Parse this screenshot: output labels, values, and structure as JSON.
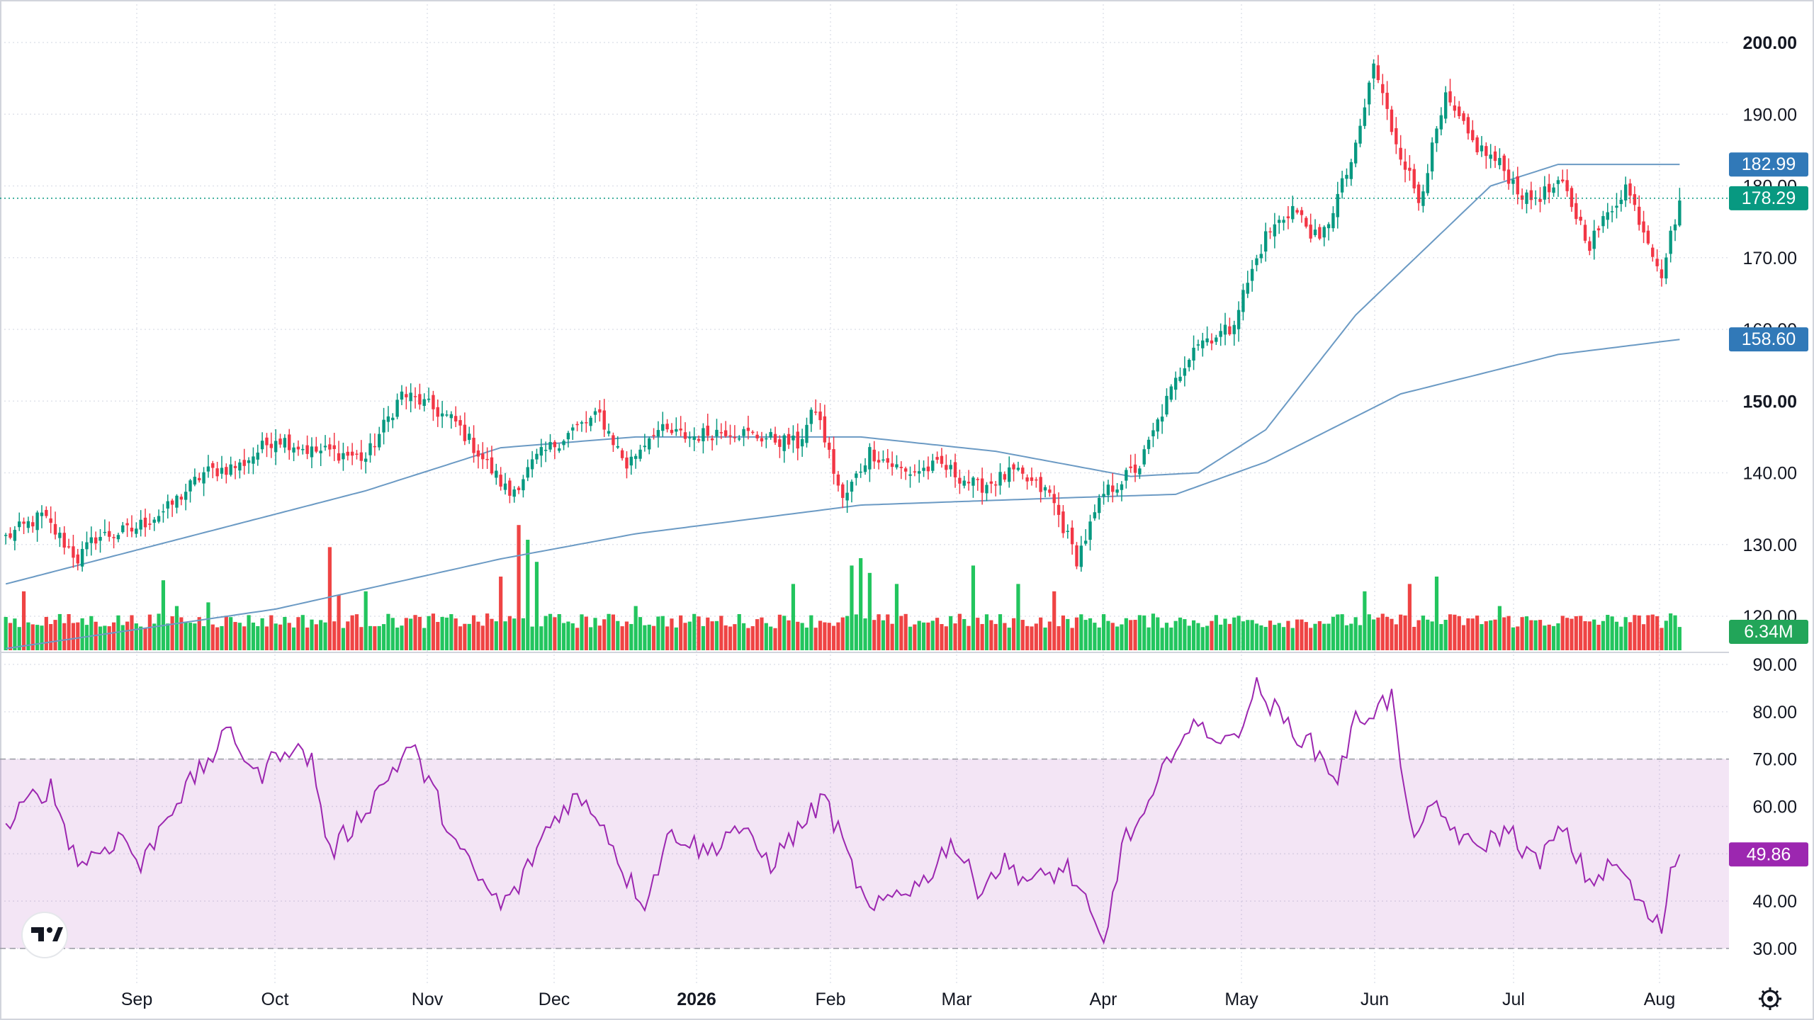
{
  "chart_data": [
    {
      "type": "candlestick",
      "panel": "price",
      "y_ticks": [
        "200.00",
        "190.00",
        "180.00",
        "170.00",
        "160.00",
        "150.00",
        "140.00",
        "130.00",
        "120.00"
      ],
      "bold_ticks": [
        "200.00",
        "150.00"
      ],
      "ylim": [
        114,
        207
      ],
      "x_labels": [
        {
          "label": "Sep",
          "bold": false
        },
        {
          "label": "Oct",
          "bold": false
        },
        {
          "label": "Nov",
          "bold": false
        },
        {
          "label": "Dec",
          "bold": false
        },
        {
          "label": "2026",
          "bold": true
        },
        {
          "label": "Feb",
          "bold": false
        },
        {
          "label": "Mar",
          "bold": false
        },
        {
          "label": "Apr",
          "bold": false
        },
        {
          "label": "May",
          "bold": false
        },
        {
          "label": "Jun",
          "bold": false
        },
        {
          "label": "Jul",
          "bold": false
        },
        {
          "label": "Aug",
          "bold": false
        }
      ],
      "close_anchors": [
        [
          0,
          131
        ],
        [
          8,
          134
        ],
        [
          16,
          128
        ],
        [
          20,
          131
        ],
        [
          28,
          132
        ],
        [
          36,
          135
        ],
        [
          44,
          140
        ],
        [
          52,
          141
        ],
        [
          60,
          145
        ],
        [
          68,
          143
        ],
        [
          72,
          143
        ],
        [
          80,
          142
        ],
        [
          88,
          151
        ],
        [
          92,
          150
        ],
        [
          100,
          147
        ],
        [
          106,
          142
        ],
        [
          112,
          137
        ],
        [
          118,
          142
        ],
        [
          126,
          146
        ],
        [
          132,
          148
        ],
        [
          138,
          141
        ],
        [
          144,
          146
        ],
        [
          152,
          145
        ],
        [
          160,
          146
        ],
        [
          168,
          145
        ],
        [
          176,
          144
        ],
        [
          180,
          149
        ],
        [
          186,
          136
        ],
        [
          192,
          143
        ],
        [
          200,
          140
        ],
        [
          208,
          141
        ],
        [
          216,
          138
        ],
        [
          224,
          140
        ],
        [
          232,
          137
        ],
        [
          238,
          128
        ],
        [
          244,
          137
        ],
        [
          252,
          141
        ],
        [
          258,
          150
        ],
        [
          264,
          158
        ],
        [
          272,
          160
        ],
        [
          280,
          173
        ],
        [
          286,
          177
        ],
        [
          292,
          172
        ],
        [
          300,
          185
        ],
        [
          304,
          197
        ],
        [
          308,
          188
        ],
        [
          314,
          178
        ],
        [
          320,
          192
        ],
        [
          326,
          186
        ],
        [
          332,
          183
        ],
        [
          338,
          178
        ],
        [
          346,
          180
        ],
        [
          352,
          172
        ],
        [
          360,
          180
        ],
        [
          368,
          168
        ],
        [
          372,
          178
        ]
      ],
      "ma_50_anchors": [
        [
          0,
          124.5
        ],
        [
          40,
          131
        ],
        [
          80,
          137.5
        ],
        [
          110,
          143.5
        ],
        [
          140,
          145
        ],
        [
          190,
          145
        ],
        [
          220,
          143
        ],
        [
          250,
          139.5
        ],
        [
          265,
          140
        ],
        [
          280,
          146
        ],
        [
          300,
          162
        ],
        [
          330,
          180
        ],
        [
          345,
          183
        ],
        [
          372,
          183
        ]
      ],
      "ma_200_anchors": [
        [
          0,
          115.5
        ],
        [
          60,
          121
        ],
        [
          110,
          128
        ],
        [
          140,
          131.5
        ],
        [
          190,
          135.5
        ],
        [
          235,
          136.5
        ],
        [
          260,
          137
        ],
        [
          280,
          141.5
        ],
        [
          310,
          151
        ],
        [
          345,
          156.5
        ],
        [
          372,
          158.6
        ]
      ],
      "price_tags": [
        {
          "label": "182.99",
          "color": "#3179b8"
        },
        {
          "label": "178.29",
          "color": "#089981"
        },
        {
          "label": "158.60",
          "color": "#3179b8"
        }
      ],
      "ma_color": "#6b9ac4",
      "up_color": "#089981",
      "down_color": "#f23645"
    },
    {
      "type": "bar",
      "panel": "volume",
      "last_value": "6.34M",
      "bar_up_color": "#22c55e",
      "bar_down_color": "#ef4444",
      "spike_anchors": [
        [
          4,
          1.6
        ],
        [
          35,
          1.9
        ],
        [
          38,
          1.2
        ],
        [
          45,
          1.3
        ],
        [
          72,
          2.8
        ],
        [
          74,
          1.5
        ],
        [
          80,
          1.6
        ],
        [
          110,
          2.0
        ],
        [
          114,
          3.4
        ],
        [
          116,
          3.0
        ],
        [
          118,
          2.4
        ],
        [
          140,
          1.2
        ],
        [
          175,
          1.8
        ],
        [
          188,
          2.3
        ],
        [
          190,
          2.5
        ],
        [
          192,
          2.1
        ],
        [
          198,
          1.8
        ],
        [
          215,
          2.3
        ],
        [
          225,
          1.8
        ],
        [
          233,
          1.6
        ],
        [
          302,
          1.6
        ],
        [
          312,
          1.8
        ],
        [
          318,
          2.0
        ],
        [
          332,
          1.2
        ],
        [
          360,
          0.9
        ],
        [
          370,
          1.0
        ],
        [
          372,
          0.4
        ]
      ]
    },
    {
      "type": "line",
      "panel": "rsi",
      "y_ticks": [
        "90.00",
        "80.00",
        "70.00",
        "60.00",
        "50.00",
        "40.00",
        "30.00"
      ],
      "ylim": [
        29,
        91
      ],
      "band": [
        30,
        70
      ],
      "last_value": "49.86",
      "line_color": "#9c27b0",
      "rsi_anchors": [
        [
          0,
          55
        ],
        [
          6,
          62
        ],
        [
          10,
          64
        ],
        [
          16,
          48
        ],
        [
          20,
          50
        ],
        [
          26,
          54
        ],
        [
          30,
          47
        ],
        [
          36,
          59
        ],
        [
          42,
          66
        ],
        [
          50,
          76
        ],
        [
          56,
          66
        ],
        [
          62,
          73
        ],
        [
          68,
          70
        ],
        [
          72,
          50
        ],
        [
          78,
          57
        ],
        [
          84,
          65
        ],
        [
          90,
          73
        ],
        [
          96,
          61
        ],
        [
          100,
          52
        ],
        [
          104,
          46
        ],
        [
          110,
          39
        ],
        [
          114,
          43
        ],
        [
          120,
          55
        ],
        [
          126,
          62
        ],
        [
          132,
          58
        ],
        [
          138,
          45
        ],
        [
          142,
          40
        ],
        [
          148,
          55
        ],
        [
          156,
          50
        ],
        [
          162,
          56
        ],
        [
          170,
          48
        ],
        [
          176,
          55
        ],
        [
          182,
          62
        ],
        [
          188,
          47
        ],
        [
          192,
          37
        ],
        [
          198,
          42
        ],
        [
          204,
          44
        ],
        [
          210,
          53
        ],
        [
          216,
          43
        ],
        [
          222,
          48
        ],
        [
          228,
          44
        ],
        [
          236,
          47
        ],
        [
          240,
          39
        ],
        [
          244,
          30
        ],
        [
          248,
          52
        ],
        [
          254,
          59
        ],
        [
          260,
          74
        ],
        [
          266,
          77
        ],
        [
          272,
          73
        ],
        [
          278,
          85
        ],
        [
          284,
          78
        ],
        [
          290,
          73
        ],
        [
          296,
          66
        ],
        [
          300,
          78
        ],
        [
          308,
          83
        ],
        [
          312,
          55
        ],
        [
          318,
          59
        ],
        [
          326,
          51
        ],
        [
          334,
          55
        ],
        [
          340,
          48
        ],
        [
          346,
          55
        ],
        [
          352,
          44
        ],
        [
          358,
          48
        ],
        [
          364,
          38
        ],
        [
          368,
          34
        ],
        [
          370,
          47
        ],
        [
          372,
          49.86
        ]
      ]
    }
  ]
}
